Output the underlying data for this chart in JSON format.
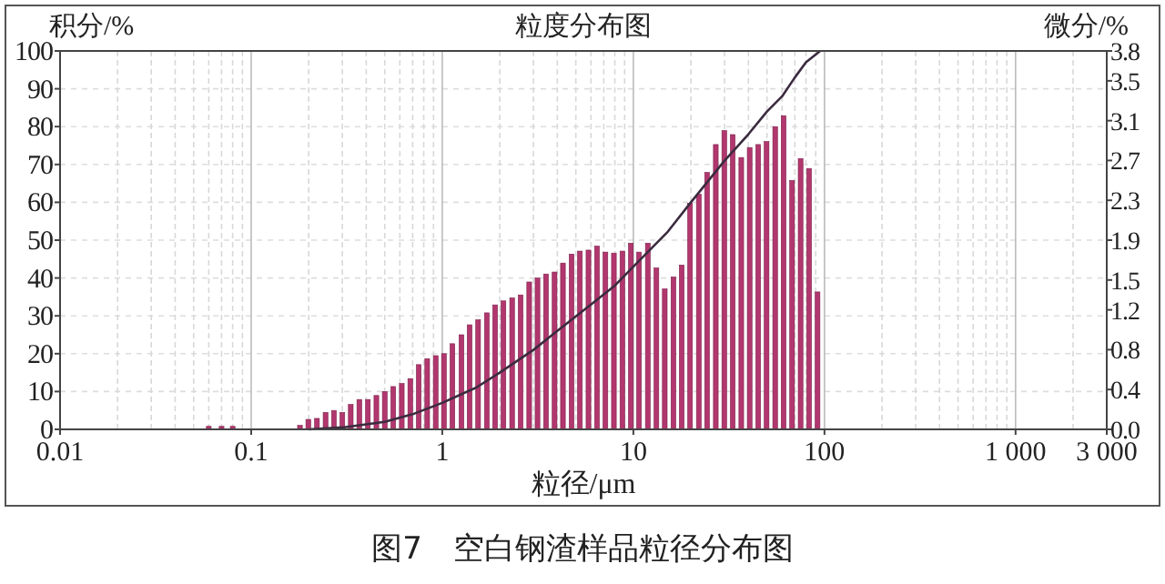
{
  "chart_data": {
    "type": "bar",
    "title": "粒度分布图",
    "xlabel": "粒径/μm",
    "ylabel": "积分/%",
    "y2label": "微分/%",
    "annotations": [
      "图7　空白钢渣样品粒径分布图"
    ],
    "log": "x",
    "grid": true,
    "xlim": [
      0.01,
      3000
    ],
    "xticks": [
      0.01,
      0.1,
      1,
      10,
      100,
      {
        "value": 1000,
        "label": "1 000"
      },
      {
        "value": 3000,
        "label": "3 000"
      }
    ],
    "ylim": [
      0,
      100
    ],
    "yticks": [
      0,
      10,
      20,
      30,
      40,
      50,
      60,
      70,
      80,
      90,
      100
    ],
    "y2lim": [
      0,
      3.8
    ],
    "y2ticks": [
      {
        "value": 0,
        "label": "0.0"
      },
      0.4,
      0.8,
      1.2,
      1.5,
      1.9,
      2.3,
      2.7,
      3.1,
      3.5,
      3.8
    ],
    "series": [
      {
        "axis": "y2",
        "color": "#b2376e",
        "x": [
          0.06,
          0.07,
          0.08,
          0.18,
          0.199,
          0.221,
          0.245,
          0.271,
          0.3,
          0.332,
          0.368,
          0.408,
          0.452,
          0.5,
          0.554,
          0.614,
          0.68,
          0.753,
          0.834,
          0.924,
          1.02,
          1.13,
          1.26,
          1.39,
          1.54,
          1.71,
          1.89,
          2.09,
          2.32,
          2.57,
          2.85,
          3.15,
          3.49,
          3.87,
          4.28,
          4.75,
          5.25,
          5.82,
          6.45,
          7.14,
          7.91,
          8.76,
          9.7,
          10.7,
          11.9,
          13.2,
          14.6,
          16.2,
          17.9,
          19.8,
          22,
          24.3,
          27,
          29.9,
          33.1,
          36.7,
          40.6,
          45,
          49.8,
          55.2,
          61.1,
          67.7,
          75,
          83.1,
          92
        ],
        "values": [
          0.03,
          0.03,
          0.03,
          0.04,
          0.1,
          0.11,
          0.17,
          0.19,
          0.17,
          0.25,
          0.3,
          0.3,
          0.34,
          0.38,
          0.43,
          0.46,
          0.51,
          0.65,
          0.71,
          0.74,
          0.76,
          0.86,
          0.95,
          1.05,
          1.1,
          1.17,
          1.25,
          1.29,
          1.32,
          1.35,
          1.48,
          1.52,
          1.56,
          1.58,
          1.67,
          1.76,
          1.79,
          1.8,
          1.84,
          1.78,
          1.77,
          1.79,
          1.87,
          1.78,
          1.87,
          1.62,
          1.41,
          1.53,
          1.65,
          2.27,
          2.36,
          2.58,
          2.86,
          3.0,
          2.96,
          2.73,
          2.83,
          2.86,
          2.89,
          3.04,
          3.15,
          2.5,
          2.72,
          2.62,
          1.38
        ]
      },
      {
        "type": "line",
        "color": "#3b2b3f",
        "x": [
          0.2,
          0.3,
          0.5,
          0.7,
          1,
          1.5,
          2,
          3,
          4,
          6,
          8,
          10,
          15,
          20,
          30,
          40,
          50,
          60,
          70,
          80,
          95
        ],
        "values": [
          0,
          0.5,
          2,
          4,
          7,
          11,
          15,
          21,
          26,
          33,
          38,
          43,
          52,
          60,
          71,
          78,
          84,
          88,
          93,
          97,
          100
        ]
      }
    ]
  }
}
